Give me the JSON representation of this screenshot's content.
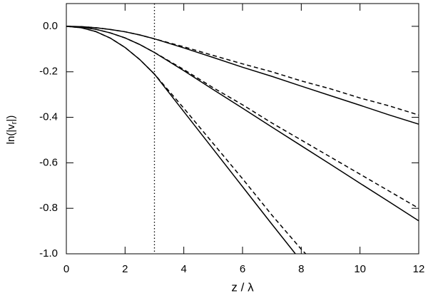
{
  "chart_data": {
    "type": "line",
    "xlabel": "z / λ",
    "ylabel": {
      "prefix": "ln(|v",
      "subscript": "r",
      "suffix": "|)"
    },
    "xlim": [
      0,
      12
    ],
    "ylim": [
      -1.0,
      0.1
    ],
    "xticks": [
      0,
      2,
      4,
      6,
      8,
      10,
      12
    ],
    "yticks": [
      {
        "value": 0,
        "label": "0.0"
      },
      {
        "value": -0.2,
        "label": "-0.2"
      },
      {
        "value": -0.4,
        "label": "-0.4"
      },
      {
        "value": -0.6,
        "label": "-0.6"
      },
      {
        "value": -0.8,
        "label": "-0.8"
      },
      {
        "value": -1.0,
        "label": "-1.0"
      }
    ],
    "vline": {
      "x": 3,
      "linestyle": "dotted",
      "color": "#000000"
    },
    "series": [
      {
        "color": "#000000",
        "linestyle": "solid",
        "x": [
          0,
          0.5,
          1,
          1.5,
          2,
          2.5,
          3,
          4,
          5,
          6,
          7,
          8,
          9,
          10,
          11,
          12
        ],
        "values": [
          0,
          -0.0015,
          -0.006,
          -0.014,
          -0.024,
          -0.038,
          -0.055,
          -0.095,
          -0.137,
          -0.18,
          -0.22,
          -0.263,
          -0.305,
          -0.347,
          -0.39,
          -0.43
        ]
      },
      {
        "color": "#000000",
        "linestyle": "dashed",
        "x": [
          0,
          0.5,
          1,
          1.5,
          2,
          2.5,
          3,
          4,
          5,
          6,
          7,
          8,
          9,
          10,
          11,
          12
        ],
        "values": [
          0,
          -0.0015,
          -0.006,
          -0.014,
          -0.024,
          -0.038,
          -0.055,
          -0.09,
          -0.128,
          -0.165,
          -0.2,
          -0.24,
          -0.275,
          -0.315,
          -0.35,
          -0.39
        ]
      },
      {
        "color": "#000000",
        "linestyle": "solid",
        "x": [
          0,
          0.5,
          1,
          1.5,
          2,
          2.5,
          3,
          4,
          5,
          6,
          7,
          8,
          9,
          10,
          11,
          12
        ],
        "values": [
          0,
          -0.003,
          -0.013,
          -0.029,
          -0.051,
          -0.08,
          -0.115,
          -0.195,
          -0.278,
          -0.36,
          -0.443,
          -0.525,
          -0.607,
          -0.69,
          -0.772,
          -0.855
        ]
      },
      {
        "color": "#000000",
        "linestyle": "dashed",
        "x": [
          0,
          0.5,
          1,
          1.5,
          2,
          2.5,
          3,
          4,
          5,
          6,
          7,
          8,
          9,
          10,
          11,
          12
        ],
        "values": [
          0,
          -0.003,
          -0.013,
          -0.029,
          -0.051,
          -0.08,
          -0.115,
          -0.19,
          -0.27,
          -0.345,
          -0.425,
          -0.5,
          -0.575,
          -0.65,
          -0.725,
          -0.8
        ]
      },
      {
        "color": "#000000",
        "linestyle": "solid",
        "x": [
          0,
          0.5,
          1,
          1.5,
          2,
          2.5,
          3,
          4,
          5,
          6,
          7,
          7.8
        ],
        "values": [
          0,
          -0.006,
          -0.023,
          -0.052,
          -0.093,
          -0.146,
          -0.21,
          -0.375,
          -0.54,
          -0.705,
          -0.87,
          -1.0
        ]
      },
      {
        "color": "#000000",
        "linestyle": "dashed",
        "x": [
          0,
          0.5,
          1,
          1.5,
          2,
          2.5,
          3,
          4,
          5,
          6,
          7,
          8,
          8.15
        ],
        "values": [
          0,
          -0.006,
          -0.023,
          -0.052,
          -0.093,
          -0.146,
          -0.21,
          -0.36,
          -0.515,
          -0.67,
          -0.83,
          -0.98,
          -1.0
        ]
      }
    ]
  }
}
